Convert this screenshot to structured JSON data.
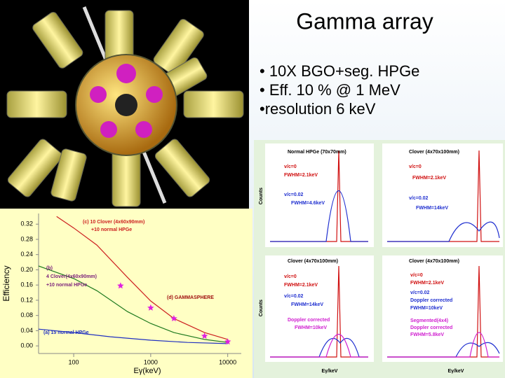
{
  "slide": {
    "title": "Gamma array",
    "bullets": [
      "• 10X BGO+seg. HPGe",
      "• Eff. 10 % @ 1 MeV",
      "•resolution 6 keV"
    ]
  },
  "chart_data": {
    "type": "line",
    "ylabel": "Efficiency",
    "xlabel": "Eγ(keV)",
    "xlog": true,
    "xlim": [
      35,
      15000
    ],
    "xticks": [
      100,
      1000,
      10000
    ],
    "ylim": [
      -0.02,
      0.348
    ],
    "yticks": [
      {
        "value": 0,
        "label": "0.00"
      },
      0.04,
      0.08,
      0.12,
      0.16,
      {
        "value": 0.2,
        "label": "0.20"
      },
      0.24,
      0.28,
      0.32
    ],
    "annotations": [
      "(c) 10 Clover (4x60x90mm)",
      "+10 normal HPGe",
      "(b)",
      "4 Clover(4x60x90mm)",
      "+10 normal HPGe",
      "(d) GAMMASPHERE",
      "(a) 15 normal HPGe"
    ],
    "series": [
      {
        "color": "#cc1f1f",
        "x": [
          60,
          100,
          200,
          500,
          1000,
          2000,
          5000,
          10000
        ],
        "values": [
          0.34,
          0.31,
          0.265,
          0.18,
          0.118,
          0.072,
          0.035,
          0.017
        ]
      },
      {
        "color": "#1f7a1f",
        "x": [
          35,
          100,
          200,
          500,
          1000,
          2000,
          5000,
          10000
        ],
        "values": [
          0.21,
          0.177,
          0.145,
          0.09,
          0.059,
          0.035,
          0.017,
          0.009
        ]
      },
      {
        "color": "#2030c0",
        "x": [
          35,
          100,
          300,
          1000,
          3000,
          10000
        ],
        "values": [
          0.044,
          0.035,
          0.024,
          0.015,
          0.009,
          0.006
        ]
      },
      {
        "color": "#e020e0",
        "marker": "star",
        "x": [
          406,
          1000,
          2000,
          5000,
          10000
        ],
        "values": [
          0.158,
          0.1,
          0.072,
          0.026,
          0.011
        ]
      }
    ]
  },
  "spectra": {
    "ylabel": "Counts",
    "xlabel": "Eγ/keV",
    "panels": [
      {
        "title": "Normal HPGe (70x70mm)",
        "labels": [
          "v/c=0",
          "FWHM=2.1keV",
          "v/c=0.02",
          "FWHM=4.6keV"
        ]
      },
      {
        "title": "Clover (4x70x100mm)",
        "labels": [
          "v/c=0",
          "FWHM=2.1keV",
          "v/c=0.02",
          "FWHM=14keV"
        ]
      },
      {
        "title": "Clover (4x70x100mm)",
        "labels": [
          "v/c=0",
          "FWHM=2.1keV",
          "v/c=0.02",
          "FWHM=14keV",
          "Doppler corrected",
          "FWHM=10keV"
        ]
      },
      {
        "title": "Clover (4x70x100mm)",
        "labels": [
          "v/c=0",
          "FWHM=2.1keV",
          "v/c=0.02",
          "Doppler corrected",
          "FWHM=10keV",
          "Segmented(4x4)",
          "Doppler corrected",
          "FWHM=5.8keV"
        ]
      }
    ]
  }
}
